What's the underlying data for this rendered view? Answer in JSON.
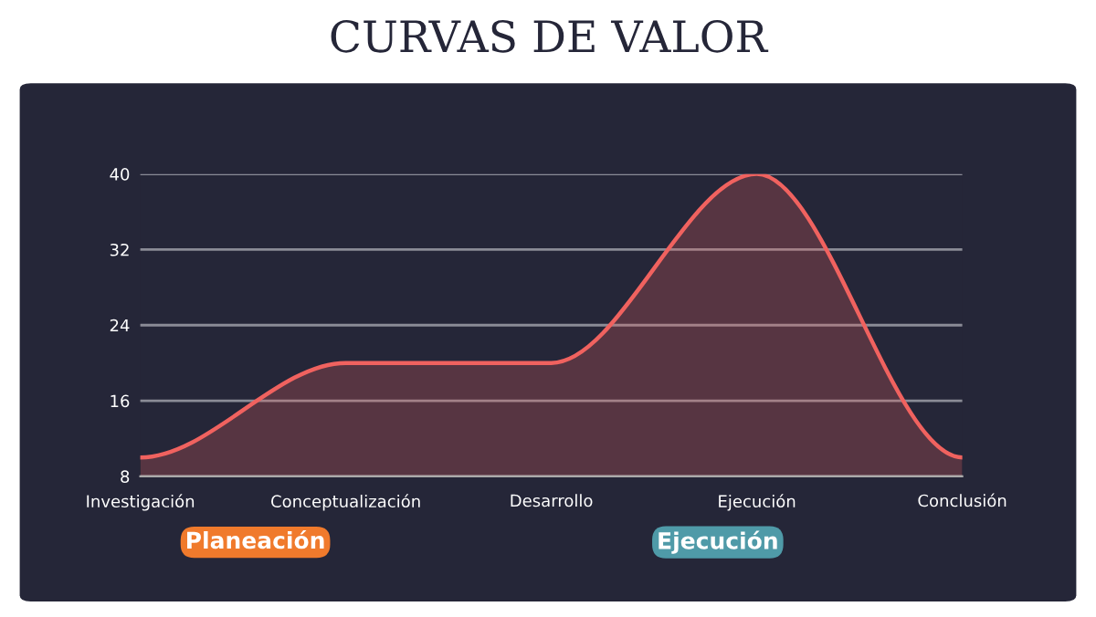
{
  "chart_data": {
    "type": "area",
    "title": "CURVAS DE VALOR",
    "categories": [
      "Investigación",
      "Conceptualización",
      "Desarrollo",
      "Ejecución",
      "Conclusión"
    ],
    "series": [
      {
        "color": "#f0625f",
        "values": [
          10,
          20,
          20,
          40,
          10
        ]
      }
    ],
    "ylim": [
      8,
      40
    ],
    "yticks": [
      8,
      16,
      24,
      32,
      40
    ],
    "grid": "y",
    "annotations": [
      "Planeación",
      "Ejecución"
    ]
  }
}
